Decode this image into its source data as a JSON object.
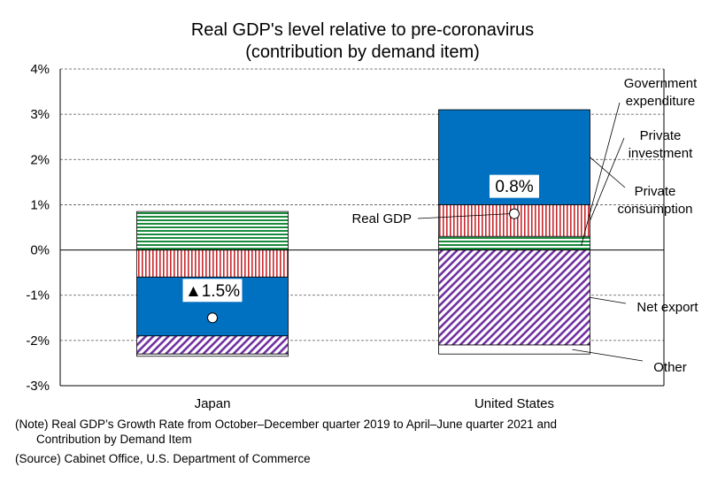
{
  "chart_data": {
    "type": "bar",
    "stacked": true,
    "title": "Real GDP's level relative to pre-coronavirus",
    "subtitle": "(contribution by demand item)",
    "xlabel": "",
    "ylabel": "",
    "ylim": [
      -3,
      4
    ],
    "yticks": [
      4,
      3,
      2,
      1,
      0,
      -1,
      -2,
      -3
    ],
    "ytick_labels": [
      "4%",
      "3%",
      "2%",
      "1%",
      "0%",
      "-1%",
      "-2%",
      "-3%"
    ],
    "grid": "horizontal dashed",
    "categories": [
      "Japan",
      "United States"
    ],
    "series": [
      {
        "name": "Government expenditure",
        "values": [
          0.85,
          0.3
        ],
        "color": "#1a8a3c",
        "pattern": "horizontal-stripes"
      },
      {
        "name": "Private investment",
        "values": [
          -0.6,
          0.7
        ],
        "color": "#c8282d",
        "pattern": "vertical-stripes"
      },
      {
        "name": "Private consumption",
        "values": [
          -1.3,
          2.1
        ],
        "color": "#0070c0",
        "pattern": "solid"
      },
      {
        "name": "Net export",
        "values": [
          -0.4,
          -2.1
        ],
        "color": "#7030a0",
        "pattern": "diagonal-stripes"
      },
      {
        "name": "Other",
        "values": [
          -0.05,
          -0.2
        ],
        "color": "#ffffff",
        "pattern": "none"
      }
    ],
    "real_gdp": {
      "name": "Real GDP",
      "values": [
        -1.5,
        0.8
      ],
      "labels": [
        "▲1.5%",
        "0.8%"
      ]
    },
    "annotations": [
      {
        "text": "Government expenditure",
        "lines": [
          "Government",
          "expenditure"
        ]
      },
      {
        "text": "Private investment",
        "lines": [
          "Private",
          "investment"
        ]
      },
      {
        "text": "Private consumption",
        "lines": [
          "Private",
          "consumption"
        ]
      },
      {
        "text": "Net export",
        "lines": [
          "Net export"
        ]
      },
      {
        "text": "Other",
        "lines": [
          "Other"
        ]
      },
      {
        "text": "Real GDP",
        "lines": [
          "Real GDP"
        ]
      }
    ]
  },
  "notes": {
    "note_line1": "(Note) Real GDP’s Growth Rate from October–December quarter 2019 to April–June quarter 2021 and",
    "note_line2": "Contribution by Demand Item",
    "source": "(Source) Cabinet Office, U.S. Department of Commerce"
  }
}
